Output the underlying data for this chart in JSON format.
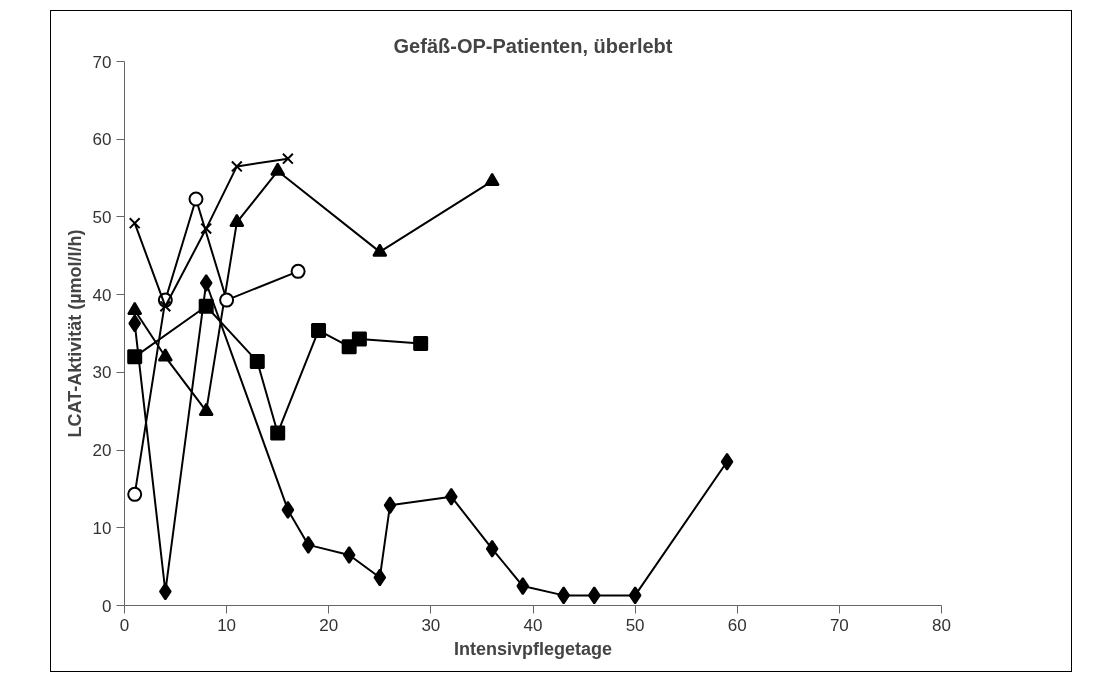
{
  "chart_data": {
    "type": "line",
    "title": "Gefäß-OP-Patienten, überlebt",
    "xlabel": "Intensivpflegetage",
    "ylabel": "LCAT-Aktivität (µmol/l/h)",
    "xlim": [
      0,
      80
    ],
    "xticks": [
      0,
      10,
      20,
      30,
      40,
      50,
      60,
      70,
      80
    ],
    "ylim": [
      0,
      70
    ],
    "yticks": [
      0,
      10,
      20,
      30,
      40,
      50,
      60,
      70
    ],
    "grid": false,
    "series": [
      {
        "color": "#000000",
        "marker": "diamond",
        "x": [
          1,
          4,
          8,
          16,
          18,
          22,
          25,
          26,
          32,
          36,
          39,
          43,
          46,
          50,
          59
        ],
        "values": [
          36.3,
          1.8,
          41.5,
          12.3,
          7.8,
          6.5,
          3.6,
          12.9,
          14,
          7.3,
          2.5,
          1.3,
          1.3,
          1.3,
          18.5
        ]
      },
      {
        "color": "#000000",
        "marker": "square",
        "x": [
          1,
          8,
          13,
          15,
          19,
          22,
          23,
          29
        ],
        "values": [
          32,
          38.5,
          31.4,
          22.2,
          35.4,
          33.3,
          34.3,
          33.7
        ]
      },
      {
        "color": "#000000",
        "marker": "triangle",
        "x": [
          1,
          4,
          8,
          11,
          15,
          25,
          36
        ],
        "values": [
          38,
          32,
          25,
          49.3,
          55.9,
          45.5,
          54.6
        ]
      },
      {
        "color": "#000000",
        "marker": "circle",
        "x": [
          1,
          4,
          7,
          10,
          17
        ],
        "values": [
          14.3,
          39.3,
          52.3,
          39.3,
          43
        ]
      },
      {
        "color": "#000000",
        "marker": "cross",
        "x": [
          1,
          4,
          8,
          11,
          16
        ],
        "values": [
          49.2,
          38.5,
          48.5,
          56.5,
          57.5
        ]
      }
    ]
  }
}
